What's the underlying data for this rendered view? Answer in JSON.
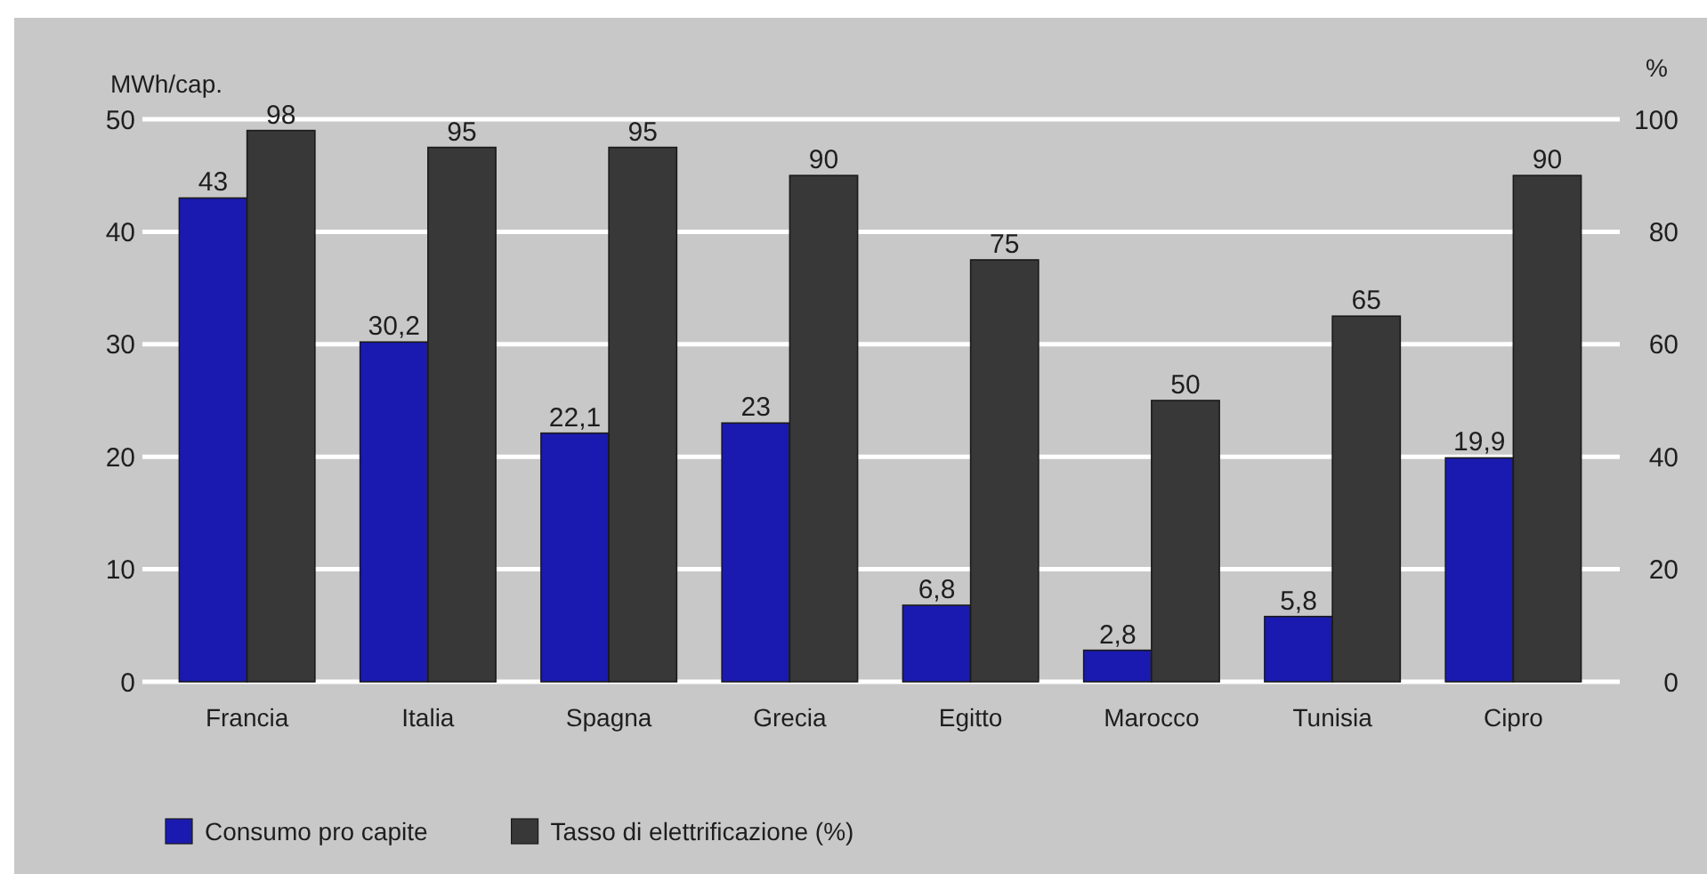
{
  "chart_data": {
    "type": "bar",
    "ylabel": "MWh/cap.",
    "y2label": "%",
    "categories": [
      "Francia",
      "Italia",
      "Spagna",
      "Grecia",
      "Egitto",
      "Marocco",
      "Tunisia",
      "Cipro"
    ],
    "series": [
      {
        "name": "Consumo pro capite",
        "color": "#1a1ab0",
        "values": [
          43,
          30.2,
          22.1,
          23,
          6.8,
          2.8,
          5.8,
          19.9
        ],
        "value_labels": [
          "43",
          "30,2",
          "22,1",
          "23",
          "6,8",
          "2,8",
          "5,8",
          "19,9"
        ]
      },
      {
        "name": "Tasso di elettrificazione (%)",
        "color": "#383838",
        "axis": "y2",
        "values": [
          98,
          95,
          95,
          90,
          75,
          50,
          65,
          90
        ],
        "value_labels": [
          "98",
          "95",
          "95",
          "90",
          "75",
          "50",
          "65",
          "90"
        ]
      }
    ],
    "ylim": [
      0,
      50
    ],
    "yticks": [
      0,
      10,
      20,
      30,
      40,
      50
    ],
    "y2lim": [
      0,
      100
    ],
    "y2ticks": [
      0,
      20,
      40,
      60,
      80,
      100
    ],
    "grid": "y",
    "legend": "bottom"
  }
}
